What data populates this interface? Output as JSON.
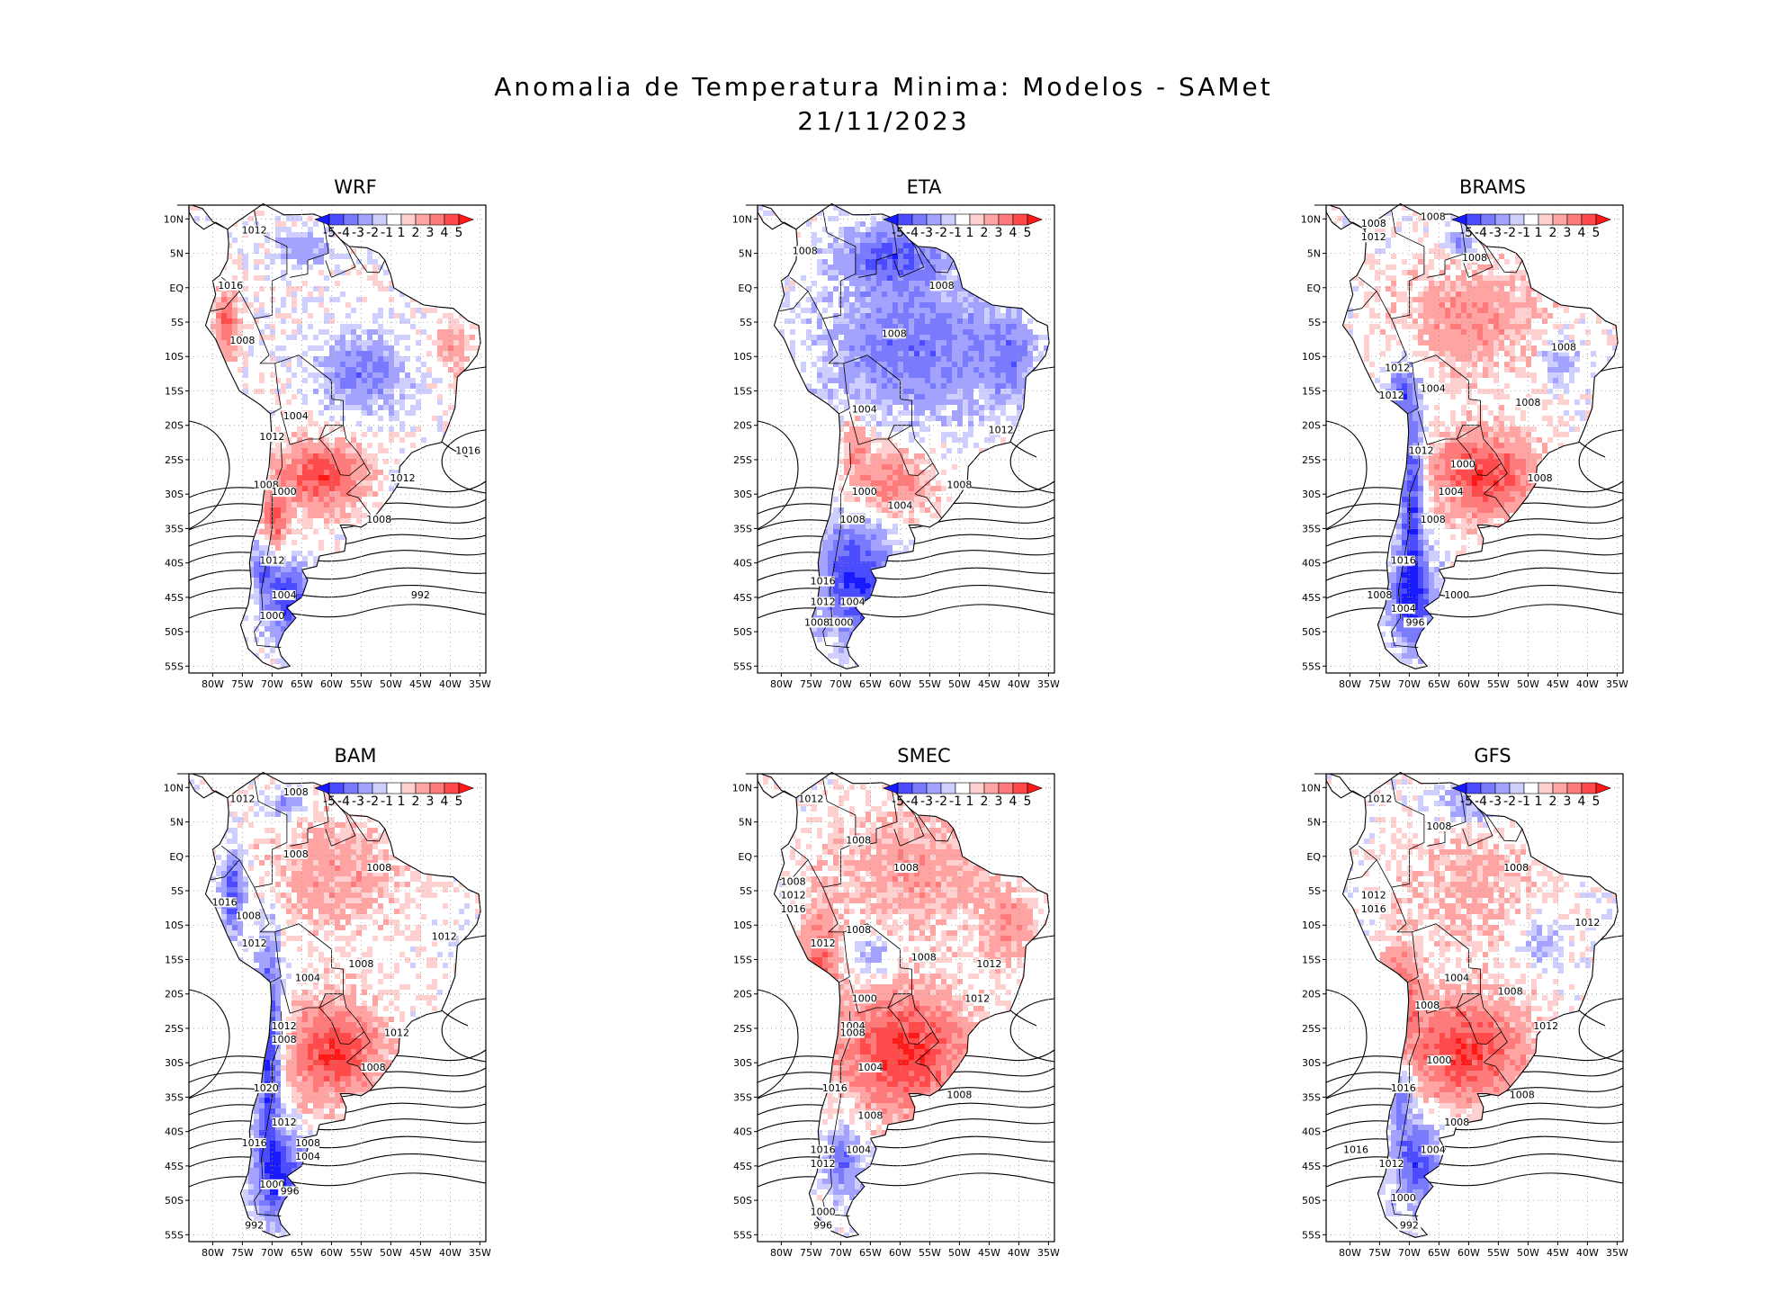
{
  "figure": {
    "title_line1": "Anomalia de Temperatura Minima: Modelos - SAMet",
    "title_line2": "21/11/2023"
  },
  "colorbar": {
    "labels": [
      "-5",
      "-4",
      "-3",
      "-2",
      "-1",
      "1",
      "2",
      "3",
      "4",
      "5"
    ],
    "colors": [
      "#1a1aff",
      "#4b4bff",
      "#7a7aff",
      "#a3a3ff",
      "#cfcfff",
      "#ffffff",
      "#ffd0d0",
      "#ffa3a3",
      "#ff7a7a",
      "#ff4b4b",
      "#ff1a1a"
    ]
  },
  "axes": {
    "lat_labels": [
      "10N",
      "5N",
      "EQ",
      "5S",
      "10S",
      "15S",
      "20S",
      "25S",
      "30S",
      "35S",
      "40S",
      "45S",
      "50S",
      "55S"
    ],
    "lon_labels": [
      "80W",
      "75W",
      "70W",
      "65W",
      "60W",
      "55W",
      "50W",
      "45W",
      "40W",
      "35W"
    ]
  },
  "panels": [
    {
      "name": "WRF",
      "blobs": [
        {
          "lon": -62,
          "lat": -27,
          "amp": 3.6,
          "rx": 7,
          "ry": 5
        },
        {
          "lon": -70,
          "lat": -33,
          "amp": 3.2,
          "rx": 2,
          "ry": 5
        },
        {
          "lon": -68,
          "lat": -45,
          "amp": -4.0,
          "rx": 4,
          "ry": 5
        },
        {
          "lon": -72,
          "lat": -40,
          "amp": -2.8,
          "rx": 2,
          "ry": 3
        },
        {
          "lon": -55,
          "lat": -12,
          "amp": -2.4,
          "rx": 7,
          "ry": 5
        },
        {
          "lon": -65,
          "lat": 6,
          "amp": -2.0,
          "rx": 4,
          "ry": 2
        },
        {
          "lon": -78,
          "lat": -5,
          "amp": 3.0,
          "rx": 2,
          "ry": 5
        },
        {
          "lon": -40,
          "lat": -8,
          "amp": 1.6,
          "rx": 3,
          "ry": 4
        },
        {
          "lon": -48,
          "lat": -28,
          "amp": -2.2,
          "rx": 2,
          "ry": 2
        }
      ],
      "isobars": [
        {
          "value": "1012",
          "lon": -73,
          "lat": 8
        },
        {
          "value": "1016",
          "lon": -77,
          "lat": 0
        },
        {
          "value": "1008",
          "lon": -75,
          "lat": -8
        },
        {
          "value": "1004",
          "lon": -66,
          "lat": -19
        },
        {
          "value": "1012",
          "lon": -70,
          "lat": -22
        },
        {
          "value": "1008",
          "lon": -71,
          "lat": -29
        },
        {
          "value": "1000",
          "lon": -68,
          "lat": -30
        },
        {
          "value": "1012",
          "lon": -48,
          "lat": -28
        },
        {
          "value": "1008",
          "lon": -52,
          "lat": -34
        },
        {
          "value": "1016",
          "lon": -37,
          "lat": -24
        },
        {
          "value": "1012",
          "lon": -70,
          "lat": -40
        },
        {
          "value": "1004",
          "lon": -68,
          "lat": -45
        },
        {
          "value": "1000",
          "lon": -70,
          "lat": -48
        },
        {
          "value": "992",
          "lon": -45,
          "lat": -45
        }
      ]
    },
    {
      "name": "ETA",
      "blobs": [
        {
          "lon": -58,
          "lat": -8,
          "amp": -2.6,
          "rx": 14,
          "ry": 10
        },
        {
          "lon": -62,
          "lat": 5,
          "amp": -3.0,
          "rx": 8,
          "ry": 4
        },
        {
          "lon": -68,
          "lat": -42,
          "amp": -4.2,
          "rx": 6,
          "ry": 8
        },
        {
          "lon": -62,
          "lat": -28,
          "amp": 2.4,
          "rx": 7,
          "ry": 5
        },
        {
          "lon": -68,
          "lat": -22,
          "amp": 2.0,
          "rx": 2,
          "ry": 4
        },
        {
          "lon": -42,
          "lat": -10,
          "amp": -2.0,
          "rx": 4,
          "ry": 6
        }
      ],
      "isobars": [
        {
          "value": "1008",
          "lon": -76,
          "lat": 5
        },
        {
          "value": "1008",
          "lon": -53,
          "lat": 0
        },
        {
          "value": "1008",
          "lon": -61,
          "lat": -7
        },
        {
          "value": "1004",
          "lon": -66,
          "lat": -18
        },
        {
          "value": "1012",
          "lon": -43,
          "lat": -21
        },
        {
          "value": "1000",
          "lon": -66,
          "lat": -30
        },
        {
          "value": "1004",
          "lon": -60,
          "lat": -32
        },
        {
          "value": "1008",
          "lon": -68,
          "lat": -34
        },
        {
          "value": "1008",
          "lon": -50,
          "lat": -29
        },
        {
          "value": "1016",
          "lon": -73,
          "lat": -43
        },
        {
          "value": "1012",
          "lon": -73,
          "lat": -46
        },
        {
          "value": "1004",
          "lon": -68,
          "lat": -46
        },
        {
          "value": "1008",
          "lon": -74,
          "lat": -49
        },
        {
          "value": "1000",
          "lon": -70,
          "lat": -49
        }
      ]
    },
    {
      "name": "BRAMS",
      "blobs": [
        {
          "lon": -58,
          "lat": -27,
          "amp": 3.8,
          "rx": 9,
          "ry": 6
        },
        {
          "lon": -70,
          "lat": -30,
          "amp": -4.2,
          "rx": 2,
          "ry": 14
        },
        {
          "lon": -70,
          "lat": -45,
          "amp": -3.8,
          "rx": 4,
          "ry": 6
        },
        {
          "lon": -72,
          "lat": -15,
          "amp": -3.0,
          "rx": 2,
          "ry": 4
        },
        {
          "lon": -60,
          "lat": -4,
          "amp": 1.8,
          "rx": 12,
          "ry": 8
        },
        {
          "lon": -62,
          "lat": 7,
          "amp": -2.5,
          "rx": 2,
          "ry": 2
        },
        {
          "lon": -45,
          "lat": -10,
          "amp": -1.8,
          "rx": 3,
          "ry": 3
        }
      ],
      "isobars": [
        {
          "value": "1008",
          "lon": -76,
          "lat": 9
        },
        {
          "value": "1012",
          "lon": -76,
          "lat": 7
        },
        {
          "value": "1008",
          "lon": -66,
          "lat": 10
        },
        {
          "value": "1008",
          "lon": -59,
          "lat": 4
        },
        {
          "value": "1008",
          "lon": -44,
          "lat": -9
        },
        {
          "value": "1012",
          "lon": -72,
          "lat": -12
        },
        {
          "value": "1012",
          "lon": -73,
          "lat": -16
        },
        {
          "value": "1004",
          "lon": -66,
          "lat": -15
        },
        {
          "value": "1008",
          "lon": -50,
          "lat": -17
        },
        {
          "value": "1012",
          "lon": -68,
          "lat": -24
        },
        {
          "value": "1000",
          "lon": -61,
          "lat": -26
        },
        {
          "value": "1004",
          "lon": -63,
          "lat": -30
        },
        {
          "value": "1008",
          "lon": -66,
          "lat": -34
        },
        {
          "value": "1008",
          "lon": -48,
          "lat": -28
        },
        {
          "value": "1016",
          "lon": -71,
          "lat": -40
        },
        {
          "value": "1000",
          "lon": -62,
          "lat": -45
        },
        {
          "value": "1008",
          "lon": -75,
          "lat": -45
        },
        {
          "value": "1004",
          "lon": -71,
          "lat": -47
        },
        {
          "value": "996",
          "lon": -69,
          "lat": -49
        }
      ]
    },
    {
      "name": "BAM",
      "blobs": [
        {
          "lon": -60,
          "lat": -28,
          "amp": 3.8,
          "rx": 8,
          "ry": 7
        },
        {
          "lon": -71,
          "lat": -28,
          "amp": -4.4,
          "rx": 2,
          "ry": 16
        },
        {
          "lon": -69,
          "lat": -46,
          "amp": -4.0,
          "rx": 4,
          "ry": 6
        },
        {
          "lon": -77,
          "lat": -5,
          "amp": -3.6,
          "rx": 2,
          "ry": 6
        },
        {
          "lon": -60,
          "lat": -2,
          "amp": 1.6,
          "rx": 12,
          "ry": 9
        },
        {
          "lon": -68,
          "lat": 8,
          "amp": -2.4,
          "rx": 3,
          "ry": 2
        }
      ],
      "isobars": [
        {
          "value": "1012",
          "lon": -75,
          "lat": 8
        },
        {
          "value": "1008",
          "lon": -66,
          "lat": 9
        },
        {
          "value": "1008",
          "lon": -66,
          "lat": 0
        },
        {
          "value": "1008",
          "lon": -52,
          "lat": -2
        },
        {
          "value": "1016",
          "lon": -78,
          "lat": -7
        },
        {
          "value": "1008",
          "lon": -74,
          "lat": -9
        },
        {
          "value": "1012",
          "lon": -73,
          "lat": -13
        },
        {
          "value": "1012",
          "lon": -41,
          "lat": -12
        },
        {
          "value": "1008",
          "lon": -55,
          "lat": -16
        },
        {
          "value": "1004",
          "lon": -64,
          "lat": -18
        },
        {
          "value": "1012",
          "lon": -68,
          "lat": -25
        },
        {
          "value": "1008",
          "lon": -68,
          "lat": -27
        },
        {
          "value": "1012",
          "lon": -49,
          "lat": -26
        },
        {
          "value": "1008",
          "lon": -53,
          "lat": -31
        },
        {
          "value": "1020",
          "lon": -71,
          "lat": -34
        },
        {
          "value": "1012",
          "lon": -68,
          "lat": -39
        },
        {
          "value": "1016",
          "lon": -73,
          "lat": -42
        },
        {
          "value": "1008",
          "lon": -64,
          "lat": -42
        },
        {
          "value": "1004",
          "lon": -64,
          "lat": -44
        },
        {
          "value": "1000",
          "lon": -70,
          "lat": -48
        },
        {
          "value": "996",
          "lon": -67,
          "lat": -49
        },
        {
          "value": "992",
          "lon": -73,
          "lat": -54
        }
      ]
    },
    {
      "name": "SMEC",
      "blobs": [
        {
          "lon": -60,
          "lat": -28,
          "amp": 4.0,
          "rx": 11,
          "ry": 9
        },
        {
          "lon": -74,
          "lat": -16,
          "amp": 3.2,
          "rx": 3,
          "ry": 8
        },
        {
          "lon": -58,
          "lat": -2,
          "amp": 1.6,
          "rx": 14,
          "ry": 10
        },
        {
          "lon": -70,
          "lat": -44,
          "amp": -2.8,
          "rx": 3,
          "ry": 5
        },
        {
          "lon": -65,
          "lat": -14,
          "amp": -1.6,
          "rx": 5,
          "ry": 3
        },
        {
          "lon": -42,
          "lat": -10,
          "amp": 1.8,
          "rx": 4,
          "ry": 5
        }
      ],
      "isobars": [
        {
          "value": "1012",
          "lon": -75,
          "lat": 8
        },
        {
          "value": "1008",
          "lon": -67,
          "lat": 2
        },
        {
          "value": "1008",
          "lon": -59,
          "lat": -2
        },
        {
          "value": "1008",
          "lon": -78,
          "lat": -4
        },
        {
          "value": "1012",
          "lon": -78,
          "lat": -6
        },
        {
          "value": "1016",
          "lon": -78,
          "lat": -8
        },
        {
          "value": "1012",
          "lon": -73,
          "lat": -13
        },
        {
          "value": "1008",
          "lon": -67,
          "lat": -11
        },
        {
          "value": "1008",
          "lon": -56,
          "lat": -15
        },
        {
          "value": "1012",
          "lon": -45,
          "lat": -16
        },
        {
          "value": "1012",
          "lon": -47,
          "lat": -21
        },
        {
          "value": "1000",
          "lon": -66,
          "lat": -21
        },
        {
          "value": "1004",
          "lon": -68,
          "lat": -25
        },
        {
          "value": "1008",
          "lon": -68,
          "lat": -26
        },
        {
          "value": "1004",
          "lon": -65,
          "lat": -31
        },
        {
          "value": "1016",
          "lon": -71,
          "lat": -34
        },
        {
          "value": "1008",
          "lon": -50,
          "lat": -35
        },
        {
          "value": "1008",
          "lon": -65,
          "lat": -38
        },
        {
          "value": "1016",
          "lon": -73,
          "lat": -43
        },
        {
          "value": "1012",
          "lon": -73,
          "lat": -45
        },
        {
          "value": "1004",
          "lon": -67,
          "lat": -43
        },
        {
          "value": "1000",
          "lon": -73,
          "lat": -52
        },
        {
          "value": "996",
          "lon": -73,
          "lat": -54
        }
      ]
    },
    {
      "name": "GFS",
      "blobs": [
        {
          "lon": -61,
          "lat": -28,
          "amp": 3.8,
          "rx": 10,
          "ry": 8
        },
        {
          "lon": -72,
          "lat": -20,
          "amp": 3.2,
          "rx": 3,
          "ry": 7
        },
        {
          "lon": -69,
          "lat": -44,
          "amp": -3.6,
          "rx": 4,
          "ry": 6
        },
        {
          "lon": -72,
          "lat": -34,
          "amp": -3.0,
          "rx": 2,
          "ry": 5
        },
        {
          "lon": -60,
          "lat": -3,
          "amp": 1.2,
          "rx": 12,
          "ry": 9
        },
        {
          "lon": -60,
          "lat": 8,
          "amp": -1.8,
          "rx": 6,
          "ry": 3
        },
        {
          "lon": -48,
          "lat": -12,
          "amp": -1.6,
          "rx": 3,
          "ry": 3
        }
      ],
      "isobars": [
        {
          "value": "1012",
          "lon": -75,
          "lat": 8
        },
        {
          "value": "1008",
          "lon": -65,
          "lat": 4
        },
        {
          "value": "1008",
          "lon": -52,
          "lat": -2
        },
        {
          "value": "1012",
          "lon": -76,
          "lat": -6
        },
        {
          "value": "1016",
          "lon": -76,
          "lat": -8
        },
        {
          "value": "1012",
          "lon": -40,
          "lat": -10
        },
        {
          "value": "1004",
          "lon": -62,
          "lat": -18
        },
        {
          "value": "1008",
          "lon": -67,
          "lat": -22
        },
        {
          "value": "1008",
          "lon": -53,
          "lat": -20
        },
        {
          "value": "1012",
          "lon": -47,
          "lat": -25
        },
        {
          "value": "1000",
          "lon": -65,
          "lat": -30
        },
        {
          "value": "1016",
          "lon": -71,
          "lat": -34
        },
        {
          "value": "1008",
          "lon": -51,
          "lat": -35
        },
        {
          "value": "1008",
          "lon": -62,
          "lat": -39
        },
        {
          "value": "1016",
          "lon": -79,
          "lat": -43
        },
        {
          "value": "1004",
          "lon": -66,
          "lat": -43
        },
        {
          "value": "1012",
          "lon": -73,
          "lat": -45
        },
        {
          "value": "1000",
          "lon": -71,
          "lat": -50
        },
        {
          "value": "992",
          "lon": -70,
          "lat": -54
        }
      ]
    }
  ]
}
